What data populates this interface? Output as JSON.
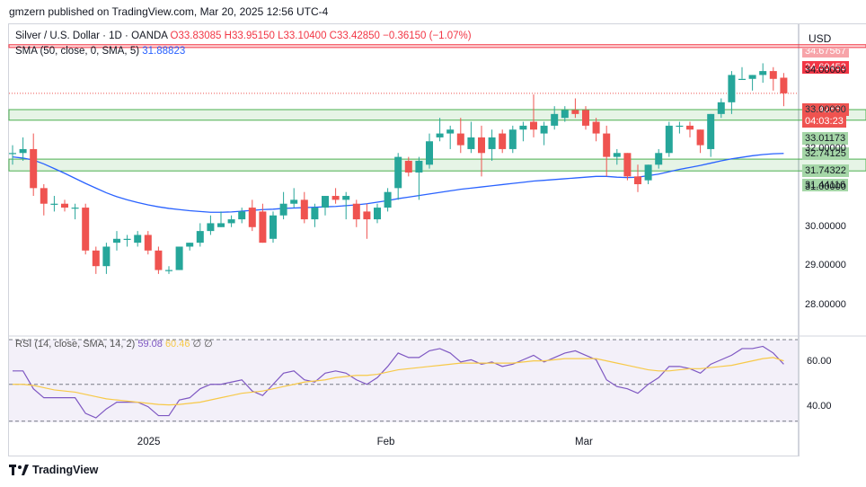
{
  "header": {
    "publisher": "gmzern published on TradingView.com, Mar 20, 2025 12:56 UTC-4"
  },
  "legend": {
    "symbol": "Silver / U.S. Dollar · 1D · OANDA",
    "ohlc": "O33.83085 H33.95150 L33.10400 C33.42850 −0.36150 (−1.07%)",
    "sma_label": "SMA (50, close, 0, SMA, 5)",
    "sma_value": "31.88823"
  },
  "rsi_legend": {
    "label": "RSI (14, close, SMA, 14, 2)",
    "rsi": "59.08",
    "rsi_sma": "60.46",
    "extra": "∅ ∅"
  },
  "axis": {
    "currency": "USD"
  },
  "price_labels": {
    "top_resistance": "34.60453",
    "top_hidden": "34.67567",
    "current": "33.42850",
    "countdown": "04:03:23",
    "zone1_top": "33.01173",
    "zone1_bottom": "32.74125",
    "zone2_top": "31.74322",
    "zone2_bottom": "31.44116"
  },
  "footer": {
    "brand": "TradingView"
  },
  "colors": {
    "up": "#26a69a",
    "down": "#ef5350",
    "sma": "#2962ff",
    "rsi": "#7e57c2",
    "rsi_sma": "#f7c948",
    "zone": "#4caf50",
    "resistance": "#f23645"
  },
  "chart_data": {
    "type": "candlestick",
    "price_ticks": [
      "34.00000",
      "33.00000",
      "32.00000",
      "31.00000",
      "30.00000",
      "29.00000",
      "28.00000"
    ],
    "price_tick_values": [
      34,
      33,
      32,
      31,
      30,
      29,
      28
    ],
    "ylim": [
      27.3,
      35.2
    ],
    "rsi_ticks": [
      "60.00",
      "40.00"
    ],
    "rsi_tick_values": [
      60,
      40
    ],
    "rsi_ylim": [
      33,
      70
    ],
    "x_labels": [
      {
        "label": "2025",
        "index": 13
      },
      {
        "label": "Feb",
        "index": 36
      },
      {
        "label": "Mar",
        "index": 55
      }
    ],
    "resistance": [
      34.604,
      34.676
    ],
    "zones": [
      [
        32.741,
        33.012
      ],
      [
        31.441,
        31.743
      ]
    ],
    "current_price": 33.4285,
    "candles": [
      {
        "o": 31.9,
        "h": 32.1,
        "l": 31.6,
        "c": 31.9
      },
      {
        "o": 31.9,
        "h": 32.3,
        "l": 31.7,
        "c": 32.0
      },
      {
        "o": 32.0,
        "h": 32.4,
        "l": 30.8,
        "c": 31.0
      },
      {
        "o": 31.0,
        "h": 31.1,
        "l": 30.3,
        "c": 30.6
      },
      {
        "o": 30.6,
        "h": 30.8,
        "l": 30.4,
        "c": 30.6
      },
      {
        "o": 30.6,
        "h": 30.7,
        "l": 30.4,
        "c": 30.5
      },
      {
        "o": 30.5,
        "h": 30.6,
        "l": 30.2,
        "c": 30.5
      },
      {
        "o": 30.5,
        "h": 30.6,
        "l": 29.3,
        "c": 29.4
      },
      {
        "o": 29.4,
        "h": 29.5,
        "l": 28.8,
        "c": 29.0
      },
      {
        "o": 29.0,
        "h": 29.6,
        "l": 28.8,
        "c": 29.5
      },
      {
        "o": 29.6,
        "h": 29.9,
        "l": 29.4,
        "c": 29.7
      },
      {
        "o": 29.7,
        "h": 29.8,
        "l": 29.5,
        "c": 29.7
      },
      {
        "o": 29.6,
        "h": 29.9,
        "l": 29.5,
        "c": 29.8
      },
      {
        "o": 29.8,
        "h": 29.9,
        "l": 29.3,
        "c": 29.4
      },
      {
        "o": 29.4,
        "h": 29.5,
        "l": 28.8,
        "c": 28.9
      },
      {
        "o": 28.9,
        "h": 29.0,
        "l": 28.8,
        "c": 28.9
      },
      {
        "o": 28.9,
        "h": 29.5,
        "l": 28.9,
        "c": 29.5
      },
      {
        "o": 29.5,
        "h": 29.6,
        "l": 29.4,
        "c": 29.6
      },
      {
        "o": 29.6,
        "h": 30.1,
        "l": 29.5,
        "c": 29.9
      },
      {
        "o": 29.9,
        "h": 30.3,
        "l": 29.8,
        "c": 30.1
      },
      {
        "o": 30.0,
        "h": 30.4,
        "l": 30.0,
        "c": 30.1
      },
      {
        "o": 30.1,
        "h": 30.3,
        "l": 30.0,
        "c": 30.2
      },
      {
        "o": 30.2,
        "h": 30.5,
        "l": 30.1,
        "c": 30.4
      },
      {
        "o": 30.5,
        "h": 30.7,
        "l": 29.9,
        "c": 30.0
      },
      {
        "o": 30.4,
        "h": 30.6,
        "l": 29.6,
        "c": 29.6
      },
      {
        "o": 29.7,
        "h": 30.4,
        "l": 29.6,
        "c": 30.3
      },
      {
        "o": 30.3,
        "h": 30.9,
        "l": 30.2,
        "c": 30.6
      },
      {
        "o": 30.6,
        "h": 31.0,
        "l": 30.5,
        "c": 30.7
      },
      {
        "o": 30.7,
        "h": 30.9,
        "l": 30.1,
        "c": 30.2
      },
      {
        "o": 30.2,
        "h": 30.6,
        "l": 30.0,
        "c": 30.5
      },
      {
        "o": 30.5,
        "h": 30.8,
        "l": 30.3,
        "c": 30.8
      },
      {
        "o": 30.8,
        "h": 31.0,
        "l": 30.6,
        "c": 30.7
      },
      {
        "o": 30.7,
        "h": 30.9,
        "l": 30.2,
        "c": 30.8
      },
      {
        "o": 30.6,
        "h": 30.7,
        "l": 30.0,
        "c": 30.2
      },
      {
        "o": 30.4,
        "h": 30.6,
        "l": 29.7,
        "c": 30.2
      },
      {
        "o": 30.2,
        "h": 30.6,
        "l": 30.1,
        "c": 30.5
      },
      {
        "o": 30.5,
        "h": 31.0,
        "l": 30.4,
        "c": 30.9
      },
      {
        "o": 31.0,
        "h": 31.9,
        "l": 30.7,
        "c": 31.8
      },
      {
        "o": 31.7,
        "h": 31.8,
        "l": 31.3,
        "c": 31.4
      },
      {
        "o": 31.4,
        "h": 31.8,
        "l": 30.7,
        "c": 31.7
      },
      {
        "o": 31.6,
        "h": 32.4,
        "l": 31.5,
        "c": 32.2
      },
      {
        "o": 32.3,
        "h": 32.8,
        "l": 32.2,
        "c": 32.4
      },
      {
        "o": 32.4,
        "h": 32.6,
        "l": 32.0,
        "c": 32.5
      },
      {
        "o": 32.4,
        "h": 32.8,
        "l": 31.9,
        "c": 32.1
      },
      {
        "o": 32.0,
        "h": 32.7,
        "l": 31.9,
        "c": 32.3
      },
      {
        "o": 32.3,
        "h": 32.6,
        "l": 31.3,
        "c": 31.9
      },
      {
        "o": 32.0,
        "h": 32.5,
        "l": 31.7,
        "c": 32.3
      },
      {
        "o": 32.4,
        "h": 32.5,
        "l": 31.9,
        "c": 32.0
      },
      {
        "o": 32.0,
        "h": 32.6,
        "l": 31.9,
        "c": 32.5
      },
      {
        "o": 32.5,
        "h": 32.7,
        "l": 32.2,
        "c": 32.6
      },
      {
        "o": 32.7,
        "h": 33.4,
        "l": 32.3,
        "c": 32.5
      },
      {
        "o": 32.4,
        "h": 32.7,
        "l": 32.1,
        "c": 32.6
      },
      {
        "o": 32.6,
        "h": 33.1,
        "l": 32.5,
        "c": 32.9
      },
      {
        "o": 32.8,
        "h": 33.1,
        "l": 32.7,
        "c": 33.0
      },
      {
        "o": 33.0,
        "h": 33.3,
        "l": 32.8,
        "c": 32.9
      },
      {
        "o": 33.0,
        "h": 33.1,
        "l": 32.5,
        "c": 32.6
      },
      {
        "o": 32.7,
        "h": 32.8,
        "l": 32.2,
        "c": 32.4
      },
      {
        "o": 32.4,
        "h": 32.6,
        "l": 31.3,
        "c": 31.8
      },
      {
        "o": 31.8,
        "h": 32.0,
        "l": 31.6,
        "c": 31.9
      },
      {
        "o": 31.9,
        "h": 31.9,
        "l": 31.2,
        "c": 31.3
      },
      {
        "o": 31.3,
        "h": 31.6,
        "l": 30.9,
        "c": 31.1
      },
      {
        "o": 31.2,
        "h": 31.6,
        "l": 31.1,
        "c": 31.6
      },
      {
        "o": 31.6,
        "h": 32.0,
        "l": 31.5,
        "c": 31.9
      },
      {
        "o": 31.9,
        "h": 32.7,
        "l": 31.8,
        "c": 32.6
      },
      {
        "o": 32.6,
        "h": 32.7,
        "l": 32.4,
        "c": 32.6
      },
      {
        "o": 32.6,
        "h": 32.7,
        "l": 32.3,
        "c": 32.5
      },
      {
        "o": 32.5,
        "h": 32.5,
        "l": 31.9,
        "c": 32.1
      },
      {
        "o": 32.0,
        "h": 32.9,
        "l": 31.8,
        "c": 32.9
      },
      {
        "o": 32.9,
        "h": 33.3,
        "l": 32.8,
        "c": 33.2
      },
      {
        "o": 33.2,
        "h": 34.0,
        "l": 32.9,
        "c": 33.9
      },
      {
        "o": 33.8,
        "h": 34.1,
        "l": 33.8,
        "c": 33.8
      },
      {
        "o": 33.8,
        "h": 33.9,
        "l": 33.5,
        "c": 33.9
      },
      {
        "o": 33.9,
        "h": 34.2,
        "l": 33.7,
        "c": 34.0
      },
      {
        "o": 34.0,
        "h": 34.1,
        "l": 33.5,
        "c": 33.8
      },
      {
        "o": 33.83,
        "h": 33.95,
        "l": 33.1,
        "c": 33.43
      }
    ],
    "sma": [
      31.8,
      31.77,
      31.72,
      31.62,
      31.5,
      31.38,
      31.25,
      31.12,
      31.0,
      30.88,
      30.78,
      30.7,
      30.63,
      30.57,
      30.52,
      30.48,
      30.45,
      30.42,
      30.4,
      30.38,
      30.38,
      30.39,
      30.41,
      30.43,
      30.45,
      30.46,
      30.48,
      30.49,
      30.5,
      30.51,
      30.52,
      30.53,
      30.55,
      30.57,
      30.6,
      30.64,
      30.68,
      30.73,
      30.77,
      30.81,
      30.85,
      30.89,
      30.93,
      30.97,
      31.0,
      31.03,
      31.06,
      31.09,
      31.12,
      31.15,
      31.18,
      31.2,
      31.22,
      31.24,
      31.26,
      31.28,
      31.3,
      31.3,
      31.28,
      31.27,
      31.28,
      31.32,
      31.36,
      31.42,
      31.48,
      31.53,
      31.58,
      31.64,
      31.7,
      31.75,
      31.79,
      31.83,
      31.86,
      31.88,
      31.89
    ],
    "rsi": [
      56,
      56,
      48,
      44,
      44,
      44,
      44,
      37,
      35,
      39,
      42,
      42,
      42,
      40,
      36,
      36,
      43,
      44,
      48,
      50,
      50,
      51,
      52,
      47,
      45,
      50,
      55,
      56,
      52,
      51,
      55,
      56,
      55,
      52,
      50,
      53,
      58,
      64,
      62,
      62,
      65,
      66,
      64,
      60,
      61,
      59,
      60,
      58,
      59,
      61,
      63,
      60,
      62,
      64,
      65,
      63,
      61,
      52,
      49,
      48,
      46,
      50,
      53,
      58,
      58,
      57,
      55,
      59,
      61,
      63,
      66,
      66,
      67,
      64,
      59
    ],
    "rsi_sma": [
      50,
      50,
      49.5,
      48.5,
      47.5,
      47,
      46.5,
      45.5,
      44.5,
      43.5,
      43,
      42.5,
      42,
      41.5,
      41,
      40.8,
      41,
      41.5,
      42,
      43,
      44,
      45,
      46,
      46.5,
      47,
      48,
      49,
      50,
      51,
      51.5,
      52,
      53,
      53.5,
      54,
      54,
      54.5,
      55.5,
      56.5,
      57,
      57.5,
      58,
      58.5,
      59,
      59.5,
      59.5,
      59.5,
      59.5,
      59.5,
      59.5,
      60,
      60.5,
      60.5,
      61,
      61.5,
      61.5,
      61.5,
      61.5,
      60.5,
      59.5,
      58.5,
      57.5,
      56.5,
      56,
      56,
      56.5,
      57,
      57,
      57.5,
      58,
      58.5,
      59.5,
      60.5,
      61.5,
      62,
      60.5
    ]
  }
}
